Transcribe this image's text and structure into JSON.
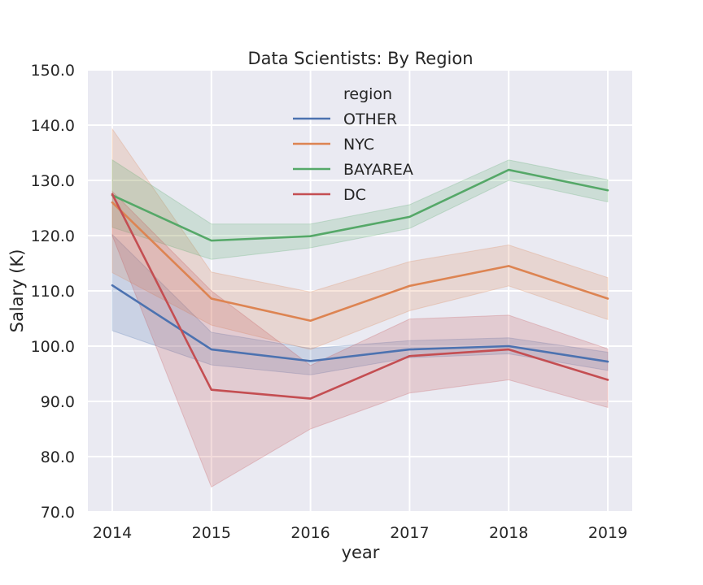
{
  "chart_data": {
    "type": "line",
    "title": "Data Scientists: By Region",
    "xlabel": "year",
    "ylabel": "Salary (K)",
    "x": [
      2014,
      2015,
      2016,
      2017,
      2018,
      2019
    ],
    "x_tick_labels": [
      "2014",
      "2015",
      "2016",
      "2017",
      "2018",
      "2019"
    ],
    "ylim": [
      70,
      150
    ],
    "y_ticks": [
      70,
      80,
      90,
      100,
      110,
      120,
      130,
      140,
      150
    ],
    "y_tick_labels": [
      "70.0",
      "80.0",
      "90.0",
      "100.0",
      "110.0",
      "120.0",
      "130.0",
      "140.0",
      "150.0"
    ],
    "grid": true,
    "legend": {
      "title": "region",
      "placement": "top-center"
    },
    "series": [
      {
        "name": "OTHER",
        "color": "#4c72b0",
        "values": [
          111.0,
          99.4,
          97.3,
          99.4,
          100.0,
          97.2
        ],
        "ci_lower": [
          102.8,
          96.6,
          94.8,
          97.9,
          98.6,
          95.6
        ],
        "ci_upper": [
          120.2,
          102.5,
          99.6,
          101.0,
          101.5,
          98.9
        ]
      },
      {
        "name": "NYC",
        "color": "#dd8452",
        "values": [
          126.0,
          108.6,
          104.6,
          110.9,
          114.5,
          108.6
        ],
        "ci_lower": [
          113.3,
          103.8,
          99.4,
          106.4,
          110.9,
          104.8
        ],
        "ci_upper": [
          139.3,
          113.4,
          109.8,
          115.3,
          118.3,
          112.4
        ]
      },
      {
        "name": "BAYAREA",
        "color": "#55a868",
        "values": [
          127.3,
          119.1,
          119.9,
          123.4,
          131.9,
          128.2
        ],
        "ci_lower": [
          121.5,
          115.7,
          117.8,
          121.3,
          130.0,
          126.1
        ],
        "ci_upper": [
          133.7,
          122.1,
          122.1,
          125.6,
          133.7,
          130.1
        ]
      },
      {
        "name": "DC",
        "color": "#c44e52",
        "values": [
          127.5,
          92.1,
          90.5,
          98.2,
          99.4,
          93.9
        ],
        "ci_lower": [
          120.0,
          74.5,
          85.0,
          91.5,
          93.9,
          88.9
        ],
        "ci_upper": [
          128.0,
          110.0,
          96.5,
          104.9,
          105.6,
          99.5
        ]
      }
    ]
  }
}
